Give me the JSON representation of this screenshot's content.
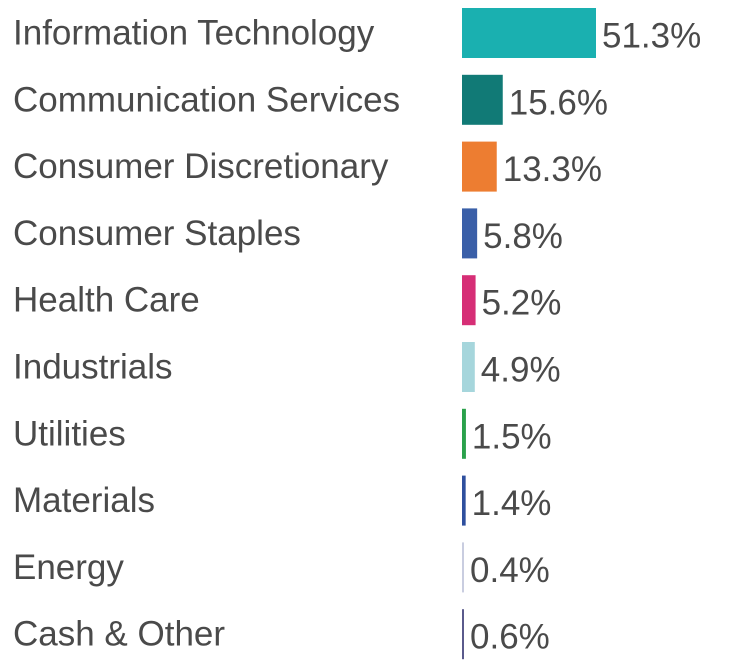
{
  "chart_data": {
    "type": "bar",
    "orientation": "horizontal",
    "title": "",
    "xlabel": "",
    "ylabel": "",
    "grid": false,
    "legend": "none",
    "xlim": [
      0,
      51.3
    ],
    "categories": [
      "Information Technology",
      "Communication Services",
      "Consumer Discretionary",
      "Consumer Staples",
      "Health Care",
      "Industrials",
      "Utilities",
      "Materials",
      "Energy",
      "Cash & Other"
    ],
    "values": [
      51.3,
      15.6,
      13.3,
      5.8,
      5.2,
      4.9,
      1.5,
      1.4,
      0.4,
      0.6
    ],
    "value_labels": [
      "51.3%",
      "15.6%",
      "13.3%",
      "5.8%",
      "5.2%",
      "4.9%",
      "1.5%",
      "1.4%",
      "0.4%",
      "0.6%"
    ],
    "colors": [
      "#1ab0b0",
      "#117a76",
      "#ed7d31",
      "#3a5fa8",
      "#d62e76",
      "#a6d6dc",
      "#2aa14b",
      "#2e4f9e",
      "#c9cde0",
      "#5a5a8c"
    ]
  }
}
